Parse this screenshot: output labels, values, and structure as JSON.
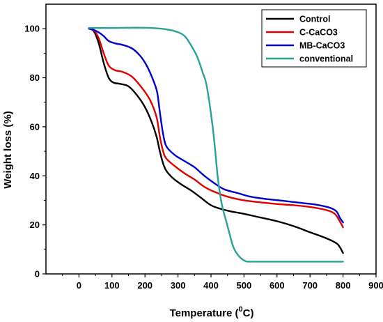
{
  "chart_data": {
    "type": "line",
    "xlabel": "Temperature (",
    "xlabel_sup": "0",
    "xlabel_tail": "C)",
    "ylabel": "Weight loss (%)",
    "xlim": [
      -100,
      900
    ],
    "ylim": [
      0,
      110
    ],
    "xticks": [
      0,
      100,
      200,
      300,
      400,
      500,
      600,
      700,
      800,
      900
    ],
    "yticks": [
      0,
      20,
      40,
      60,
      80,
      100
    ],
    "grid": false,
    "legend_position": "top-right",
    "series": [
      {
        "name": "Control",
        "color": "#000000",
        "points": [
          [
            30,
            100
          ],
          [
            45,
            99
          ],
          [
            60,
            94
          ],
          [
            75,
            86
          ],
          [
            90,
            80
          ],
          [
            105,
            78
          ],
          [
            125,
            77.5
          ],
          [
            150,
            76.5
          ],
          [
            175,
            73
          ],
          [
            200,
            68
          ],
          [
            220,
            62
          ],
          [
            235,
            56
          ],
          [
            245,
            50
          ],
          [
            255,
            45
          ],
          [
            265,
            42
          ],
          [
            285,
            39
          ],
          [
            310,
            36.5
          ],
          [
            340,
            34
          ],
          [
            370,
            31
          ],
          [
            400,
            28
          ],
          [
            430,
            26.5
          ],
          [
            460,
            25.5
          ],
          [
            500,
            24.5
          ],
          [
            550,
            23
          ],
          [
            600,
            21.5
          ],
          [
            650,
            19.5
          ],
          [
            700,
            17
          ],
          [
            750,
            14.5
          ],
          [
            780,
            12.5
          ],
          [
            790,
            11
          ],
          [
            800,
            8.5
          ]
        ]
      },
      {
        "name": "C-CaCO3",
        "color": "#e00000",
        "points": [
          [
            30,
            100
          ],
          [
            45,
            99.5
          ],
          [
            60,
            96
          ],
          [
            75,
            90
          ],
          [
            90,
            85
          ],
          [
            110,
            83
          ],
          [
            130,
            82.5
          ],
          [
            160,
            80.5
          ],
          [
            190,
            76
          ],
          [
            215,
            71
          ],
          [
            235,
            64
          ],
          [
            245,
            56
          ],
          [
            255,
            50
          ],
          [
            265,
            47
          ],
          [
            290,
            44
          ],
          [
            320,
            41
          ],
          [
            350,
            38.5
          ],
          [
            380,
            35.5
          ],
          [
            410,
            33.5
          ],
          [
            450,
            31.5
          ],
          [
            500,
            30
          ],
          [
            550,
            29.2
          ],
          [
            600,
            28.5
          ],
          [
            650,
            28
          ],
          [
            700,
            27.3
          ],
          [
            750,
            26
          ],
          [
            775,
            24.5
          ],
          [
            790,
            21.5
          ],
          [
            800,
            19
          ]
        ]
      },
      {
        "name": "MB-CaCO3",
        "color": "#0000cc",
        "points": [
          [
            30,
            100
          ],
          [
            45,
            99.5
          ],
          [
            60,
            98.5
          ],
          [
            75,
            97
          ],
          [
            90,
            95
          ],
          [
            110,
            94
          ],
          [
            130,
            93.5
          ],
          [
            160,
            92
          ],
          [
            185,
            89
          ],
          [
            205,
            85
          ],
          [
            225,
            79
          ],
          [
            237,
            74
          ],
          [
            245,
            66
          ],
          [
            255,
            57
          ],
          [
            265,
            52
          ],
          [
            290,
            48.5
          ],
          [
            320,
            46
          ],
          [
            350,
            43.5
          ],
          [
            380,
            40
          ],
          [
            410,
            37
          ],
          [
            440,
            34.5
          ],
          [
            480,
            33
          ],
          [
            520,
            31.5
          ],
          [
            570,
            30.5
          ],
          [
            620,
            29.8
          ],
          [
            670,
            29
          ],
          [
            720,
            28.2
          ],
          [
            760,
            27
          ],
          [
            780,
            25.5
          ],
          [
            790,
            23
          ],
          [
            800,
            21
          ]
        ]
      },
      {
        "name": "conventional",
        "color": "#2aa198",
        "points": [
          [
            30,
            100.3
          ],
          [
            100,
            100.3
          ],
          [
            150,
            100.4
          ],
          [
            200,
            100.4
          ],
          [
            250,
            100
          ],
          [
            290,
            99
          ],
          [
            320,
            97
          ],
          [
            345,
            92
          ],
          [
            360,
            88
          ],
          [
            375,
            82
          ],
          [
            385,
            78
          ],
          [
            395,
            70
          ],
          [
            405,
            60
          ],
          [
            413,
            50
          ],
          [
            420,
            40
          ],
          [
            428,
            32
          ],
          [
            435,
            27
          ],
          [
            445,
            22
          ],
          [
            455,
            17
          ],
          [
            465,
            12
          ],
          [
            475,
            9
          ],
          [
            490,
            6.5
          ],
          [
            505,
            5.2
          ],
          [
            520,
            5
          ],
          [
            600,
            5
          ],
          [
            700,
            5
          ],
          [
            800,
            5
          ]
        ]
      }
    ]
  }
}
